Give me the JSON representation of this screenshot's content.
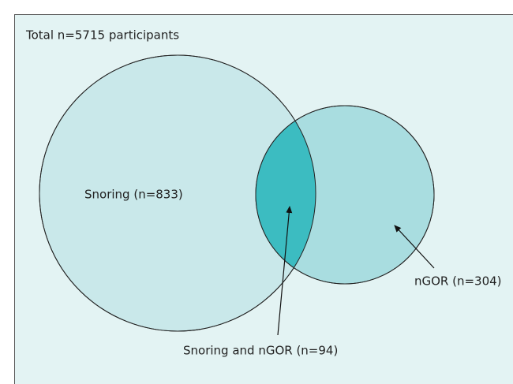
{
  "title": "Total n=5715 participants",
  "sets": [
    {
      "label": "Snoring (n=833)"
    },
    {
      "label": "nGOR (n=304)"
    }
  ],
  "intersection": {
    "label": "Snoring and nGOR (n=94)"
  }
}
